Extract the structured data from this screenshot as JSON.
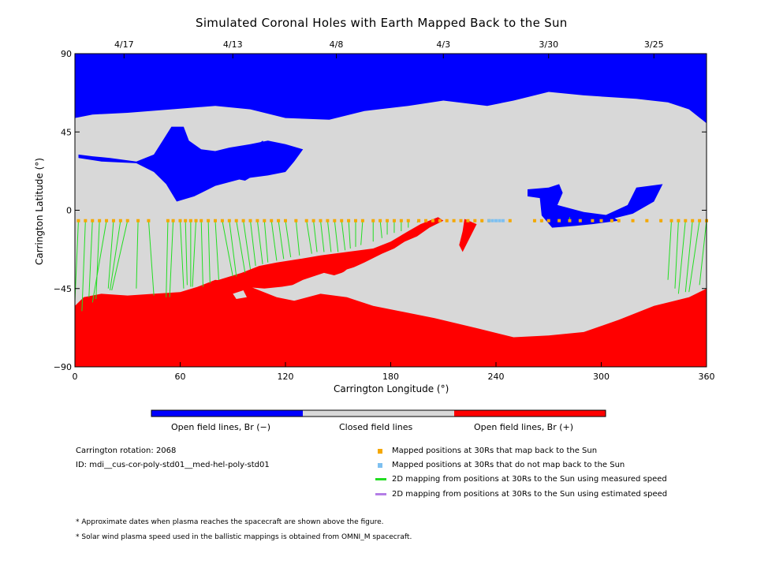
{
  "title": "Simulated Coronal Holes with Earth Mapped Back to the Sun",
  "colors": {
    "open_negative": "#0000ff",
    "closed": "#d8d8d8",
    "open_positive": "#ff0000",
    "mapped": "#f5a800",
    "unmapped": "#7ec0f0",
    "measured": "#22dd22",
    "estimated": "#b47ee6"
  },
  "colorbar": {
    "labels": [
      "Open field lines, Br (−)",
      "Closed field lines",
      "Open field lines, Br (+)"
    ]
  },
  "info": {
    "rotation": "Carrington rotation: 2068",
    "id": "ID: mdi__cus-cor-poly-std01__med-hel-poly-std01"
  },
  "legend": [
    {
      "kind": "mapped",
      "label": "Mapped positions at 30Rs that map back to the Sun"
    },
    {
      "kind": "unmapped",
      "label": "Mapped positions at 30Rs that do not map back to the Sun"
    },
    {
      "kind": "measured",
      "label": "2D mapping from positions at 30Rs to the Sun using measured speed"
    },
    {
      "kind": "estimated",
      "label": "2D mapping from positions at 30Rs to the Sun using estimated speed"
    }
  ],
  "notes": [
    "* Approximate dates when plasma reaches the spacecraft are shown above the figure.",
    "* Solar wind plasma speed used in the ballistic mappings is obtained from OMNI_M spacecraft."
  ],
  "chart_data": {
    "type": "heatmap",
    "title": "Simulated Coronal Holes with Earth Mapped Back to the Sun",
    "xlabel": "Carrington Longitude (°)",
    "ylabel": "Carrington Latitude (°)",
    "xlim": [
      0,
      360
    ],
    "ylim": [
      -90,
      90
    ],
    "xticks": [
      0,
      60,
      120,
      180,
      240,
      300,
      360
    ],
    "yticks": [
      90,
      45,
      0,
      -45,
      -90
    ],
    "ytick_labels": [
      "90",
      "45",
      "0",
      "−45",
      "−90"
    ],
    "top_axis": {
      "labels": [
        "4/17",
        "4/13",
        "4/8",
        "4/3",
        "3/30",
        "3/25"
      ],
      "longitudes": [
        28,
        90,
        149,
        210,
        270,
        330
      ]
    },
    "regions": [
      {
        "polarity": "negative",
        "polygon": [
          [
            0,
            90
          ],
          [
            360,
            90
          ],
          [
            360,
            50
          ],
          [
            350,
            58
          ],
          [
            338,
            62
          ],
          [
            320,
            64
          ],
          [
            290,
            66
          ],
          [
            270,
            68
          ],
          [
            250,
            63
          ],
          [
            235,
            60
          ],
          [
            210,
            63
          ],
          [
            190,
            60
          ],
          [
            165,
            57
          ],
          [
            145,
            52
          ],
          [
            120,
            53
          ],
          [
            100,
            58
          ],
          [
            80,
            60
          ],
          [
            55,
            58
          ],
          [
            30,
            56
          ],
          [
            10,
            55
          ],
          [
            0,
            53
          ]
        ]
      },
      {
        "polarity": "negative",
        "polygon": [
          [
            2,
            30
          ],
          [
            15,
            28
          ],
          [
            35,
            27
          ],
          [
            45,
            22
          ],
          [
            52,
            15
          ],
          [
            58,
            5
          ],
          [
            68,
            8
          ],
          [
            80,
            14
          ],
          [
            95,
            18
          ],
          [
            110,
            20
          ],
          [
            120,
            22
          ],
          [
            125,
            28
          ],
          [
            130,
            35
          ],
          [
            120,
            38
          ],
          [
            110,
            40
          ],
          [
            100,
            38
          ],
          [
            88,
            36
          ],
          [
            80,
            34
          ],
          [
            72,
            35
          ],
          [
            65,
            40
          ],
          [
            62,
            48
          ],
          [
            55,
            48
          ],
          [
            50,
            40
          ],
          [
            45,
            32
          ],
          [
            35,
            28
          ],
          [
            20,
            30
          ],
          [
            10,
            31
          ],
          [
            2,
            32
          ]
        ]
      },
      {
        "polarity": "negative",
        "polygon": [
          [
            102,
            36
          ],
          [
            107,
            40
          ],
          [
            110,
            35
          ],
          [
            106,
            30
          ],
          [
            101,
            32
          ]
        ]
      },
      {
        "polarity": "negative",
        "polygon": [
          [
            93,
            22
          ],
          [
            100,
            25
          ],
          [
            102,
            20
          ],
          [
            97,
            17
          ],
          [
            92,
            18
          ]
        ]
      },
      {
        "polarity": "negative",
        "polygon": [
          [
            258,
            12
          ],
          [
            270,
            13
          ],
          [
            276,
            15
          ],
          [
            278,
            10
          ],
          [
            275,
            3
          ],
          [
            290,
            -1
          ],
          [
            305,
            -3
          ],
          [
            310,
            -6
          ],
          [
            295,
            -8
          ],
          [
            285,
            -9
          ],
          [
            272,
            -10
          ],
          [
            266,
            -3
          ],
          [
            265,
            7
          ],
          [
            258,
            8
          ]
        ]
      },
      {
        "polarity": "negative",
        "polygon": [
          [
            320,
            13
          ],
          [
            335,
            15
          ],
          [
            330,
            5
          ],
          [
            318,
            -2
          ],
          [
            306,
            -5
          ],
          [
            302,
            -3
          ],
          [
            315,
            3
          ]
        ]
      },
      {
        "polarity": "positive",
        "polygon": [
          [
            0,
            -90
          ],
          [
            360,
            -90
          ],
          [
            360,
            -45
          ],
          [
            350,
            -50
          ],
          [
            330,
            -55
          ],
          [
            310,
            -63
          ],
          [
            290,
            -70
          ],
          [
            270,
            -72
          ],
          [
            250,
            -73
          ],
          [
            230,
            -68
          ],
          [
            205,
            -62
          ],
          [
            185,
            -58
          ],
          [
            170,
            -55
          ],
          [
            155,
            -50
          ],
          [
            140,
            -48
          ],
          [
            125,
            -52
          ],
          [
            115,
            -50
          ],
          [
            95,
            -42
          ],
          [
            80,
            -40
          ],
          [
            70,
            -44
          ],
          [
            60,
            -47
          ],
          [
            45,
            -48
          ],
          [
            30,
            -49
          ],
          [
            15,
            -48
          ],
          [
            5,
            -50
          ],
          [
            0,
            -55
          ]
        ]
      },
      {
        "polarity": "positive",
        "polygon": [
          [
            70,
            -44
          ],
          [
            82,
            -40
          ],
          [
            95,
            -36
          ],
          [
            105,
            -32
          ],
          [
            115,
            -30
          ],
          [
            128,
            -28
          ],
          [
            140,
            -26
          ],
          [
            155,
            -24
          ],
          [
            170,
            -22
          ],
          [
            180,
            -18
          ],
          [
            190,
            -12
          ],
          [
            197,
            -8
          ],
          [
            207,
            -4
          ],
          [
            210,
            -6
          ],
          [
            202,
            -10
          ],
          [
            195,
            -15
          ],
          [
            188,
            -18
          ],
          [
            182,
            -22
          ],
          [
            175,
            -25
          ],
          [
            165,
            -30
          ],
          [
            152,
            -36
          ],
          [
            140,
            -40
          ],
          [
            130,
            -42
          ],
          [
            118,
            -44
          ],
          [
            108,
            -45
          ],
          [
            95,
            -44
          ],
          [
            80,
            -44
          ]
        ]
      },
      {
        "polarity": "positive",
        "polygon": [
          [
            222,
            -5
          ],
          [
            229,
            -8
          ],
          [
            225,
            -16
          ],
          [
            221,
            -24
          ],
          [
            219,
            -20
          ],
          [
            221,
            -12
          ]
        ]
      }
    ],
    "closed_islands": [
      {
        "polygon": [
          [
            120,
            -45
          ],
          [
            130,
            -40
          ],
          [
            142,
            -36
          ],
          [
            150,
            -38
          ],
          [
            148,
            -43
          ],
          [
            138,
            -47
          ],
          [
            128,
            -49
          ],
          [
            122,
            -48
          ]
        ]
      },
      {
        "polygon": [
          [
            155,
            -34
          ],
          [
            168,
            -30
          ],
          [
            180,
            -30
          ],
          [
            190,
            -36
          ],
          [
            188,
            -46
          ],
          [
            175,
            -52
          ],
          [
            162,
            -50
          ],
          [
            152,
            -44
          ],
          [
            150,
            -38
          ]
        ]
      },
      {
        "polygon": [
          [
            90,
            -48
          ],
          [
            96,
            -46
          ],
          [
            98,
            -50
          ],
          [
            92,
            -51
          ]
        ]
      }
    ],
    "top_points": {
      "lon": [
        2,
        6,
        10,
        14,
        18,
        22,
        26,
        30,
        36,
        42,
        53,
        56,
        60,
        63,
        66,
        69,
        72,
        76,
        80,
        84,
        88,
        92,
        96,
        100,
        104,
        108,
        112,
        116,
        120,
        126,
        132,
        136,
        140,
        144,
        148,
        152,
        156,
        160,
        164,
        170,
        174,
        178,
        182,
        186,
        190,
        196,
        200,
        204,
        208,
        212,
        216,
        220,
        224,
        228,
        232,
        236,
        248,
        262,
        266,
        270,
        276,
        282,
        288,
        295,
        300,
        306,
        310,
        318,
        326,
        334,
        340,
        344,
        348,
        352,
        356,
        360
      ],
      "lat": -6,
      "mapped_to": [
        [
          0,
          -52
        ],
        [
          4,
          -58
        ],
        [
          8,
          -50
        ],
        [
          12,
          -51
        ],
        [
          10,
          -53
        ],
        [
          19,
          -45
        ],
        [
          20,
          -46
        ],
        [
          21,
          -46
        ],
        [
          35,
          -45
        ],
        [
          45,
          -49
        ],
        [
          52,
          -50
        ],
        [
          54,
          -50
        ],
        [
          62,
          -45
        ],
        [
          64,
          -43
        ],
        [
          66,
          -44
        ],
        [
          67,
          -44
        ],
        [
          73,
          -44
        ],
        [
          77,
          -42
        ],
        [
          82,
          -40
        ],
        [
          90,
          -38
        ],
        [
          92,
          -38
        ],
        [
          97,
          -36
        ],
        [
          100,
          -34
        ],
        [
          103,
          -32
        ],
        [
          107,
          -31
        ],
        [
          110,
          -30
        ],
        [
          115,
          -29
        ],
        [
          119,
          -28
        ],
        [
          123,
          -27
        ],
        [
          128,
          -26
        ],
        [
          135,
          -25
        ],
        [
          138,
          -24
        ],
        [
          142,
          -24
        ],
        [
          146,
          -24
        ],
        [
          150,
          -24
        ],
        [
          154,
          -23
        ],
        [
          157,
          -22
        ],
        [
          160,
          -21
        ],
        [
          163,
          -20
        ],
        [
          170,
          -18
        ],
        [
          175,
          -16
        ],
        [
          178,
          -14
        ],
        [
          182,
          -13
        ],
        [
          186,
          -12
        ],
        [
          190,
          -10
        ],
        [
          195,
          -7
        ],
        [
          200,
          -6
        ],
        [
          204,
          -6
        ],
        [
          208,
          -6
        ],
        [
          212,
          -6
        ],
        [
          216,
          -6
        ],
        [
          220,
          -6
        ],
        [
          224,
          -7
        ],
        [
          228,
          -7
        ],
        [
          232,
          -7
        ],
        [
          236,
          -7
        ],
        [
          248,
          -6
        ],
        [
          262,
          -7
        ],
        [
          266,
          -7
        ],
        [
          270,
          -7
        ],
        [
          276,
          -5
        ],
        [
          282,
          -4
        ],
        [
          288,
          -5
        ],
        [
          295,
          -6
        ],
        [
          300,
          -7
        ],
        [
          306,
          -7
        ],
        [
          310,
          -7
        ],
        [
          318,
          -6
        ],
        [
          326,
          -6
        ],
        [
          334,
          -7
        ],
        [
          338,
          -40
        ],
        [
          342,
          -45
        ],
        [
          344,
          -48
        ],
        [
          348,
          -47
        ],
        [
          350,
          -47
        ],
        [
          356,
          -43
        ]
      ],
      "unmapped_lon": [
        236,
        238,
        240,
        242,
        244
      ]
    }
  }
}
